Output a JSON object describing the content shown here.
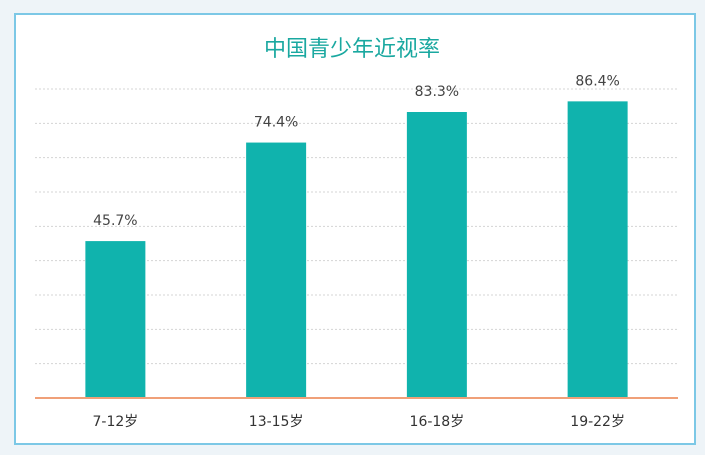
{
  "chart_data": {
    "type": "bar",
    "title": "中国青少年近视率",
    "categories": [
      "7-12岁",
      "13-15岁",
      "16-18岁",
      "19-22岁"
    ],
    "values": [
      45.7,
      74.4,
      83.3,
      86.4
    ],
    "value_labels": [
      "45.7%",
      "74.4%",
      "83.3%",
      "86.4%"
    ],
    "color": "#10b3ad",
    "ylim": [
      0,
      90
    ],
    "yticks": [
      0,
      10,
      20,
      30,
      40,
      50,
      60,
      70,
      80,
      90
    ],
    "grid": true
  }
}
